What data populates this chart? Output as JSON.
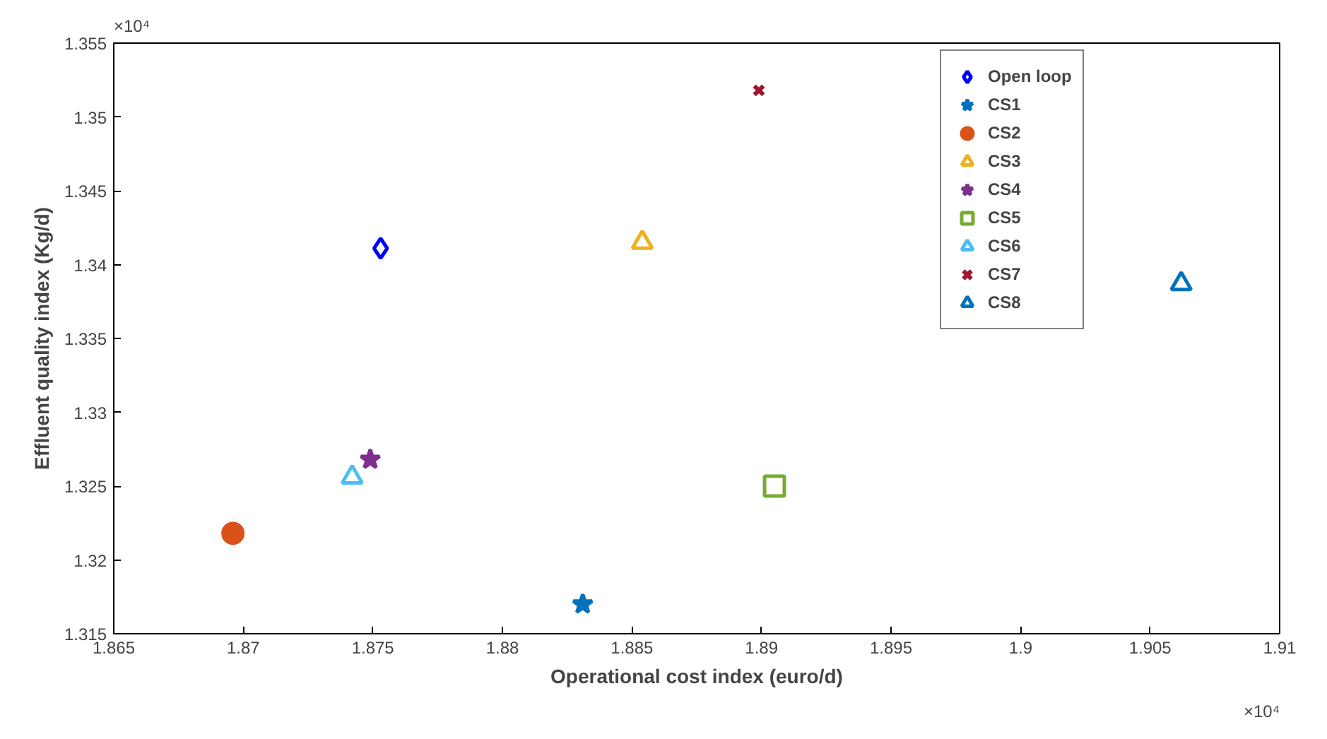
{
  "chart_data": {
    "type": "scatter",
    "xlabel": "Operational cost index (euro/d)",
    "ylabel": "Effluent quality index (Kg/d)",
    "annotations": [
      "×10⁴",
      "×10⁴"
    ],
    "xlim": [
      1.865,
      1.91
    ],
    "ylim": [
      1.315,
      1.355
    ],
    "xticks": [
      1.865,
      1.87,
      1.875,
      1.88,
      1.885,
      1.89,
      1.895,
      1.9,
      1.905,
      1.91
    ],
    "yticks": [
      1.315,
      1.32,
      1.325,
      1.33,
      1.335,
      1.34,
      1.345,
      1.35,
      1.355
    ],
    "grid": false,
    "legend": "top right",
    "series": [
      {
        "name": "Open loop",
        "color": "#0000ff",
        "marker": "diamond",
        "x": [
          1.8753
        ],
        "values": [
          1.3411
        ]
      },
      {
        "name": "CS1",
        "color": "#0072bd",
        "marker": "star",
        "x": [
          1.8831
        ],
        "values": [
          1.317
        ]
      },
      {
        "name": "CS2",
        "color": "#d95319",
        "marker": "circle",
        "x": [
          1.8696
        ],
        "values": [
          1.3218
        ]
      },
      {
        "name": "CS3",
        "color": "#edb120",
        "marker": "triangle",
        "x": [
          1.8854
        ],
        "values": [
          1.3415
        ]
      },
      {
        "name": "CS4",
        "color": "#7e2f8e",
        "marker": "star",
        "x": [
          1.8749
        ],
        "values": [
          1.3268
        ]
      },
      {
        "name": "CS5",
        "color": "#77ac30",
        "marker": "square",
        "x": [
          1.8905
        ],
        "values": [
          1.325
        ]
      },
      {
        "name": "CS6",
        "color": "#4dbeee",
        "marker": "triangle",
        "x": [
          1.8742
        ],
        "values": [
          1.3256
        ]
      },
      {
        "name": "CS7",
        "color": "#a2142f",
        "marker": "cross",
        "x": [
          1.8899
        ],
        "values": [
          1.3518
        ]
      },
      {
        "name": "CS8",
        "color": "#0072bd",
        "marker": "triangle",
        "x": [
          1.9062
        ],
        "values": [
          1.3387
        ]
      }
    ]
  }
}
